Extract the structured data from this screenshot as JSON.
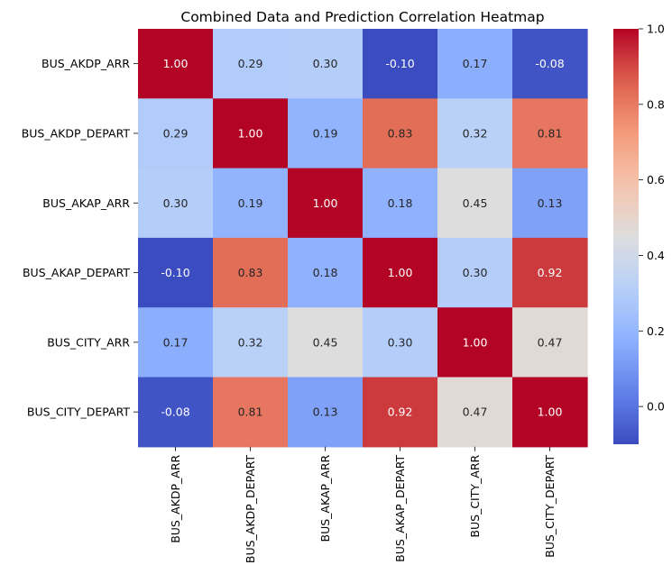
{
  "chart_data": {
    "type": "heatmap",
    "title": "Combined Data and Prediction Correlation Heatmap",
    "rows": [
      "BUS_AKDP_ARR",
      "BUS_AKDP_DEPART",
      "BUS_AKAP_ARR",
      "BUS_AKAP_DEPART",
      "BUS_CITY_ARR",
      "BUS_CITY_DEPART"
    ],
    "columns": [
      "BUS_AKDP_ARR",
      "BUS_AKDP_DEPART",
      "BUS_AKAP_ARR",
      "BUS_AKAP_DEPART",
      "BUS_CITY_ARR",
      "BUS_CITY_DEPART"
    ],
    "values": [
      [
        1.0,
        0.29,
        0.3,
        -0.1,
        0.17,
        -0.08
      ],
      [
        0.29,
        1.0,
        0.19,
        0.83,
        0.32,
        0.81
      ],
      [
        0.3,
        0.19,
        1.0,
        0.18,
        0.45,
        0.13
      ],
      [
        -0.1,
        0.83,
        0.18,
        1.0,
        0.3,
        0.92
      ],
      [
        0.17,
        0.32,
        0.45,
        0.3,
        1.0,
        0.47
      ],
      [
        -0.08,
        0.81,
        0.13,
        0.92,
        0.47,
        1.0
      ]
    ],
    "annotation_format": "0.00",
    "colormap": "coolwarm",
    "colorbar": {
      "range": [
        -0.1,
        1.0
      ],
      "ticks": [
        0.0,
        0.2,
        0.4,
        0.6,
        0.8,
        1.0
      ],
      "tick_labels": [
        "0.0",
        "0.2",
        "0.4",
        "0.6",
        "0.8",
        "1.0"
      ]
    }
  }
}
